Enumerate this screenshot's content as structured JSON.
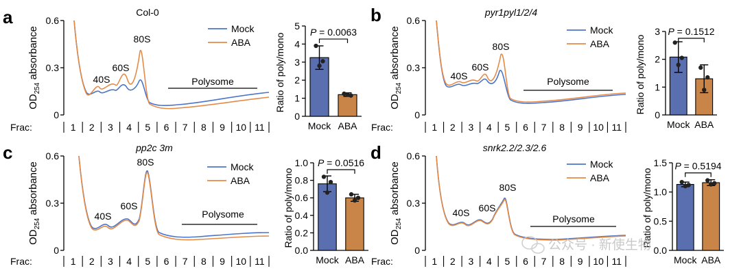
{
  "figure": {
    "watermark": "公众号 · 新使生物",
    "panels": [
      {
        "letter": "a",
        "title": "Col-0",
        "title_italic": false,
        "profile": {
          "y_ticks": [
            "0.6",
            "0.3",
            "0"
          ],
          "y_range": [
            0,
            0.6
          ],
          "ylabel_main": "OD",
          "ylabel_sub": "254",
          "ylabel_rest": " absorbance",
          "frac_label": "Frac:",
          "fractions": [
            "1",
            "2",
            "3",
            "4",
            "5",
            "6",
            "7",
            "8",
            "9",
            "10",
            "11"
          ],
          "peaks": {
            "s40": "40S",
            "s60": "60S",
            "s80": "80S"
          },
          "polysome_label": "Polysome",
          "legend": [
            "Mock",
            "ABA"
          ],
          "colors": {
            "mock": "#4a74c9",
            "aba": "#e58a46"
          }
        },
        "bar": {
          "ylabel": "Ratio of poly/mono",
          "y_ticks": [
            "5",
            "4",
            "3",
            "2",
            "1",
            "0"
          ],
          "ylim": [
            0,
            5
          ],
          "categories": [
            "Mock",
            "ABA"
          ],
          "means": [
            3.25,
            1.2
          ],
          "errors": [
            0.65,
            0.1
          ],
          "points": [
            [
              3.9,
              3.05,
              2.8
            ],
            [
              1.25,
              1.15,
              1.2
            ]
          ],
          "p_label": "P = 0.0063",
          "colors": [
            "#5a6fb0",
            "#c98548"
          ]
        }
      },
      {
        "letter": "b",
        "title": "pyr1pyl1/2/4",
        "title_italic": true,
        "profile": {
          "y_ticks": [
            "0.6",
            "0.3",
            "0"
          ],
          "y_range": [
            0,
            0.6
          ],
          "ylabel_main": "OD",
          "ylabel_sub": "254",
          "ylabel_rest": " absorbance",
          "frac_label": "Frac:",
          "fractions": [
            "1",
            "2",
            "3",
            "4",
            "5",
            "6",
            "7",
            "8",
            "9",
            "10",
            "11"
          ],
          "peaks": {
            "s40": "40S",
            "s60": "60S",
            "s80": "80S"
          },
          "polysome_label": "Polysome",
          "legend": [
            "Mock",
            "ABA"
          ],
          "colors": {
            "mock": "#4a74c9",
            "aba": "#e58a46"
          }
        },
        "bar": {
          "ylabel": "Ratio of poly/mono",
          "y_ticks": [
            "3",
            "2",
            "1",
            "0"
          ],
          "ylim": [
            0,
            3
          ],
          "categories": [
            "Mock",
            "ABA"
          ],
          "means": [
            2.08,
            1.3
          ],
          "errors": [
            0.55,
            0.5
          ],
          "points": [
            [
              2.6,
              2.05,
              1.8
            ],
            [
              1.7,
              1.35,
              0.9
            ]
          ],
          "p_label": "P = 0.1512",
          "colors": [
            "#5a6fb0",
            "#c98548"
          ]
        }
      },
      {
        "letter": "c",
        "title": "pp2c 3m",
        "title_italic": true,
        "profile": {
          "y_ticks": [
            "0.6",
            "0.3",
            "0"
          ],
          "y_range": [
            0,
            0.6
          ],
          "ylabel_main": "OD",
          "ylabel_sub": "254",
          "ylabel_rest": " absorbance",
          "frac_label": "Frac:",
          "fractions": [
            "1",
            "2",
            "3",
            "4",
            "5",
            "6",
            "7",
            "8",
            "9",
            "10",
            "11"
          ],
          "peaks": {
            "s40": "40S",
            "s60": "60S",
            "s80": "80S"
          },
          "polysome_label": "Polysome",
          "legend": [
            "Mock",
            "ABA"
          ],
          "colors": {
            "mock": "#4a74c9",
            "aba": "#e58a46"
          }
        },
        "bar": {
          "ylabel": "Ratio of poly/mono",
          "y_ticks": [
            "1.0",
            "0.8",
            "0.6",
            "0.4",
            "0.2",
            "0.0"
          ],
          "ylim": [
            0,
            1.0
          ],
          "categories": [
            "Mock",
            "ABA"
          ],
          "means": [
            0.76,
            0.6
          ],
          "errors": [
            0.09,
            0.04
          ],
          "points": [
            [
              0.84,
              0.78,
              0.66
            ],
            [
              0.64,
              0.6,
              0.57
            ]
          ],
          "p_label": "P = 0.0516",
          "colors": [
            "#5a6fb0",
            "#c98548"
          ]
        }
      },
      {
        "letter": "d",
        "title": "snrk2.2/2.3/2.6",
        "title_italic": true,
        "profile": {
          "y_ticks": [
            "0.6",
            "0.3",
            "0"
          ],
          "y_range": [
            0,
            0.6
          ],
          "ylabel_main": "OD",
          "ylabel_sub": "254",
          "ylabel_rest": " absorbance",
          "frac_label": "Frac:",
          "fractions": [
            "1",
            "2",
            "3",
            "4",
            "5",
            "6",
            "7",
            "8",
            "9",
            "10",
            "11"
          ],
          "peaks": {
            "s40": "40S",
            "s60": "60S",
            "s80": "80S"
          },
          "polysome_label": "Polysome",
          "legend": [
            "Mock",
            "ABA"
          ],
          "colors": {
            "mock": "#4a74c9",
            "aba": "#e58a46"
          }
        },
        "bar": {
          "ylabel": "Ratio of poly/mono",
          "y_ticks": [
            "1.5",
            "1.0",
            "0.5",
            "0.0"
          ],
          "ylim": [
            0,
            1.5
          ],
          "categories": [
            "Mock",
            "ABA"
          ],
          "means": [
            1.13,
            1.16
          ],
          "errors": [
            0.04,
            0.05
          ],
          "points": [
            [
              1.17,
              1.12,
              1.1
            ],
            [
              1.2,
              1.15,
              1.13
            ]
          ],
          "p_label": "P = 0.5194",
          "colors": [
            "#5a6fb0",
            "#c98548"
          ]
        }
      }
    ]
  },
  "chart_data": [
    {
      "type": "line",
      "panel": "a",
      "title": "Col-0",
      "xlabel": "Frac:",
      "ylabel": "OD254 absorbance",
      "x": [
        1,
        2,
        3,
        4,
        5,
        6,
        7,
        8,
        9,
        10,
        11
      ],
      "ylim": [
        0,
        0.6
      ],
      "series": [
        {
          "name": "Mock",
          "values": [
            0.45,
            0.13,
            0.16,
            0.17,
            0.22,
            0.09,
            0.08,
            0.08,
            0.1,
            0.12,
            0.13
          ]
        },
        {
          "name": "ABA",
          "values": [
            0.45,
            0.14,
            0.18,
            0.24,
            0.42,
            0.08,
            0.07,
            0.07,
            0.08,
            0.1,
            0.11
          ]
        }
      ],
      "annotations": [
        "40S",
        "60S",
        "80S",
        "Polysome"
      ]
    },
    {
      "type": "bar",
      "panel": "a",
      "categories": [
        "Mock",
        "ABA"
      ],
      "values": [
        3.25,
        1.2
      ],
      "errors": [
        0.65,
        0.1
      ],
      "ylabel": "Ratio of poly/mono",
      "ylim": [
        0,
        5
      ],
      "annotation": "P = 0.0063"
    },
    {
      "type": "line",
      "panel": "b",
      "title": "pyr1pyl1/2/4",
      "xlabel": "Frac:",
      "ylabel": "OD254 absorbance",
      "x": [
        1,
        2,
        3,
        4,
        5,
        6,
        7,
        8,
        9,
        10,
        11
      ],
      "ylim": [
        0,
        0.6
      ],
      "series": [
        {
          "name": "Mock",
          "values": [
            0.45,
            0.18,
            0.2,
            0.22,
            0.3,
            0.09,
            0.08,
            0.09,
            0.1,
            0.12,
            0.13
          ]
        },
        {
          "name": "ABA",
          "values": [
            0.45,
            0.19,
            0.22,
            0.24,
            0.4,
            0.09,
            0.08,
            0.09,
            0.1,
            0.12,
            0.13
          ]
        }
      ],
      "annotations": [
        "40S",
        "60S",
        "80S",
        "Polysome"
      ]
    },
    {
      "type": "bar",
      "panel": "b",
      "categories": [
        "Mock",
        "ABA"
      ],
      "values": [
        2.08,
        1.3
      ],
      "errors": [
        0.55,
        0.5
      ],
      "ylabel": "Ratio of poly/mono",
      "ylim": [
        0,
        3
      ],
      "annotation": "P = 0.1512"
    },
    {
      "type": "line",
      "panel": "c",
      "title": "pp2c 3m",
      "xlabel": "Frac:",
      "ylabel": "OD254 absorbance",
      "x": [
        1,
        2,
        3,
        4,
        5,
        6,
        7,
        8,
        9,
        10,
        11
      ],
      "ylim": [
        0,
        0.6
      ],
      "series": [
        {
          "name": "Mock",
          "values": [
            0.45,
            0.12,
            0.16,
            0.2,
            0.5,
            0.1,
            0.09,
            0.08,
            0.09,
            0.1,
            0.1
          ]
        },
        {
          "name": "ABA",
          "values": [
            0.45,
            0.11,
            0.15,
            0.19,
            0.49,
            0.09,
            0.08,
            0.07,
            0.08,
            0.08,
            0.08
          ]
        }
      ],
      "annotations": [
        "40S",
        "60S",
        "80S",
        "Polysome"
      ]
    },
    {
      "type": "bar",
      "panel": "c",
      "categories": [
        "Mock",
        "ABA"
      ],
      "values": [
        0.76,
        0.6
      ],
      "errors": [
        0.09,
        0.04
      ],
      "ylabel": "Ratio of poly/mono",
      "ylim": [
        0,
        1.0
      ],
      "annotation": "P = 0.0516"
    },
    {
      "type": "line",
      "panel": "d",
      "title": "snrk2.2/2.3/2.6",
      "xlabel": "Frac:",
      "ylabel": "OD254 absorbance",
      "x": [
        1,
        2,
        3,
        4,
        5,
        6,
        7,
        8,
        9,
        10,
        11
      ],
      "ylim": [
        0,
        0.6
      ],
      "series": [
        {
          "name": "Mock",
          "values": [
            0.45,
            0.12,
            0.15,
            0.2,
            0.34,
            0.08,
            0.07,
            0.07,
            0.08,
            0.09,
            0.1
          ]
        },
        {
          "name": "ABA",
          "values": [
            0.45,
            0.12,
            0.15,
            0.2,
            0.33,
            0.08,
            0.07,
            0.07,
            0.08,
            0.09,
            0.1
          ]
        }
      ],
      "annotations": [
        "40S",
        "60S",
        "80S",
        "Polysome"
      ]
    },
    {
      "type": "bar",
      "panel": "d",
      "categories": [
        "Mock",
        "ABA"
      ],
      "values": [
        1.13,
        1.16
      ],
      "errors": [
        0.04,
        0.05
      ],
      "ylabel": "Ratio of poly/mono",
      "ylim": [
        0,
        1.5
      ],
      "annotation": "P = 0.5194"
    }
  ]
}
